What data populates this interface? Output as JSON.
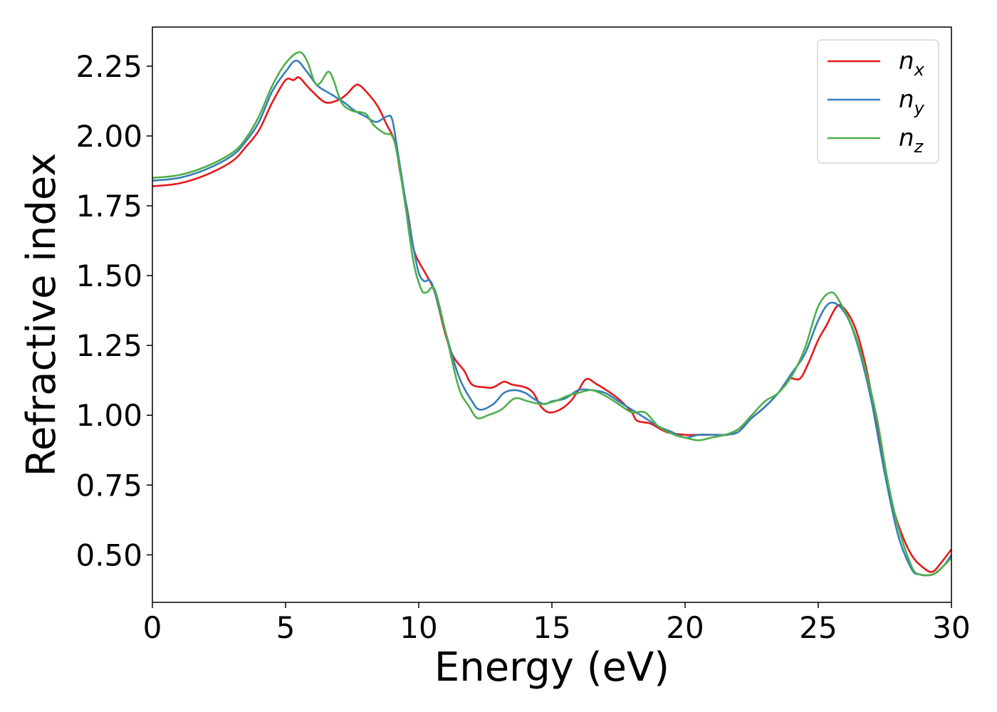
{
  "chart_data": {
    "type": "line",
    "title": "",
    "xlabel": "Energy (eV)",
    "ylabel": "Refractive index",
    "xlim": [
      0,
      30
    ],
    "ylim": [
      0.33,
      2.39
    ],
    "xticks": [
      0,
      5,
      10,
      15,
      20,
      25,
      30
    ],
    "xtick_labels": [
      "0",
      "5",
      "10",
      "15",
      "20",
      "25",
      "30"
    ],
    "yticks": [
      0.5,
      0.75,
      1.0,
      1.25,
      1.5,
      1.75,
      2.0,
      2.25
    ],
    "ytick_labels": [
      "0.50",
      "0.75",
      "1.00",
      "1.25",
      "1.50",
      "1.75",
      "2.00",
      "2.25"
    ],
    "grid": false,
    "legend_position": "top-right",
    "series": [
      {
        "name": "n_x",
        "legend_base": "n",
        "legend_sub": "x",
        "color": "#e41a1c",
        "points": [
          [
            0,
            1.82
          ],
          [
            1,
            1.83
          ],
          [
            2,
            1.86
          ],
          [
            3,
            1.91
          ],
          [
            3.5,
            1.96
          ],
          [
            4,
            2.02
          ],
          [
            4.5,
            2.12
          ],
          [
            5,
            2.2
          ],
          [
            5.3,
            2.2
          ],
          [
            5.5,
            2.21
          ],
          [
            5.8,
            2.18
          ],
          [
            6,
            2.16
          ],
          [
            6.5,
            2.12
          ],
          [
            7,
            2.13
          ],
          [
            7.3,
            2.15
          ],
          [
            7.6,
            2.18
          ],
          [
            7.8,
            2.18
          ],
          [
            8.2,
            2.14
          ],
          [
            8.5,
            2.1
          ],
          [
            8.8,
            2.04
          ],
          [
            9.1,
            1.98
          ],
          [
            9.3,
            1.87
          ],
          [
            9.6,
            1.72
          ],
          [
            9.8,
            1.6
          ],
          [
            10,
            1.55
          ],
          [
            10.3,
            1.5
          ],
          [
            10.6,
            1.44
          ],
          [
            11,
            1.29
          ],
          [
            11.3,
            1.21
          ],
          [
            11.7,
            1.16
          ],
          [
            12,
            1.11
          ],
          [
            12.5,
            1.1
          ],
          [
            12.8,
            1.1
          ],
          [
            13.2,
            1.12
          ],
          [
            13.5,
            1.11
          ],
          [
            14,
            1.1
          ],
          [
            14.3,
            1.08
          ],
          [
            14.6,
            1.03
          ],
          [
            14.9,
            1.01
          ],
          [
            15.3,
            1.02
          ],
          [
            15.7,
            1.05
          ],
          [
            16,
            1.09
          ],
          [
            16.3,
            1.13
          ],
          [
            16.7,
            1.11
          ],
          [
            17.2,
            1.08
          ],
          [
            17.6,
            1.05
          ],
          [
            18,
            1.01
          ],
          [
            18.2,
            0.98
          ],
          [
            18.7,
            0.97
          ],
          [
            19.3,
            0.94
          ],
          [
            20,
            0.93
          ],
          [
            20.5,
            0.93
          ],
          [
            21.2,
            0.93
          ],
          [
            21.6,
            0.93
          ],
          [
            22,
            0.95
          ],
          [
            22.5,
            0.99
          ],
          [
            23,
            1.03
          ],
          [
            23.5,
            1.08
          ],
          [
            23.9,
            1.13
          ],
          [
            24.3,
            1.13
          ],
          [
            24.6,
            1.18
          ],
          [
            25,
            1.27
          ],
          [
            25.3,
            1.32
          ],
          [
            25.7,
            1.39
          ],
          [
            26,
            1.38
          ],
          [
            26.4,
            1.31
          ],
          [
            26.8,
            1.17
          ],
          [
            27.2,
            0.97
          ],
          [
            27.6,
            0.75
          ],
          [
            28,
            0.61
          ],
          [
            28.5,
            0.5
          ],
          [
            29,
            0.45
          ],
          [
            29.3,
            0.44
          ],
          [
            29.6,
            0.47
          ],
          [
            30,
            0.52
          ]
        ]
      },
      {
        "name": "n_y",
        "legend_base": "n",
        "legend_sub": "y",
        "color": "#377eb8",
        "points": [
          [
            0,
            1.84
          ],
          [
            1,
            1.85
          ],
          [
            2,
            1.88
          ],
          [
            3,
            1.93
          ],
          [
            3.5,
            1.98
          ],
          [
            4,
            2.05
          ],
          [
            4.5,
            2.16
          ],
          [
            5,
            2.23
          ],
          [
            5.4,
            2.27
          ],
          [
            5.8,
            2.23
          ],
          [
            6.2,
            2.18
          ],
          [
            6.7,
            2.15
          ],
          [
            7.2,
            2.12
          ],
          [
            7.6,
            2.09
          ],
          [
            8,
            2.07
          ],
          [
            8.4,
            2.05
          ],
          [
            8.8,
            2.07
          ],
          [
            9,
            2.06
          ],
          [
            9.2,
            1.95
          ],
          [
            9.5,
            1.77
          ],
          [
            9.8,
            1.6
          ],
          [
            10,
            1.51
          ],
          [
            10.2,
            1.48
          ],
          [
            10.5,
            1.47
          ],
          [
            11,
            1.3
          ],
          [
            11.5,
            1.14
          ],
          [
            12,
            1.05
          ],
          [
            12.3,
            1.02
          ],
          [
            12.8,
            1.04
          ],
          [
            13.2,
            1.08
          ],
          [
            13.6,
            1.09
          ],
          [
            14,
            1.08
          ],
          [
            14.3,
            1.06
          ],
          [
            14.7,
            1.04
          ],
          [
            15,
            1.05
          ],
          [
            15.5,
            1.06
          ],
          [
            16,
            1.09
          ],
          [
            16.5,
            1.09
          ],
          [
            17,
            1.08
          ],
          [
            17.5,
            1.05
          ],
          [
            18,
            1.02
          ],
          [
            18.5,
            0.99
          ],
          [
            19,
            0.96
          ],
          [
            19.5,
            0.94
          ],
          [
            20,
            0.92
          ],
          [
            20.5,
            0.93
          ],
          [
            21,
            0.93
          ],
          [
            21.5,
            0.93
          ],
          [
            22,
            0.94
          ],
          [
            22.5,
            0.99
          ],
          [
            23,
            1.03
          ],
          [
            23.5,
            1.08
          ],
          [
            24,
            1.15
          ],
          [
            24.5,
            1.22
          ],
          [
            25,
            1.34
          ],
          [
            25.4,
            1.4
          ],
          [
            25.8,
            1.39
          ],
          [
            26.2,
            1.33
          ],
          [
            26.6,
            1.21
          ],
          [
            27,
            1.05
          ],
          [
            27.5,
            0.79
          ],
          [
            28,
            0.57
          ],
          [
            28.5,
            0.45
          ],
          [
            28.8,
            0.43
          ],
          [
            29.3,
            0.43
          ],
          [
            29.7,
            0.46
          ],
          [
            30,
            0.5
          ]
        ]
      },
      {
        "name": "n_z",
        "legend_base": "n",
        "legend_sub": "z",
        "color": "#4daf4a",
        "points": [
          [
            0,
            1.85
          ],
          [
            1,
            1.86
          ],
          [
            2,
            1.89
          ],
          [
            3,
            1.94
          ],
          [
            3.5,
            1.99
          ],
          [
            4,
            2.07
          ],
          [
            4.5,
            2.18
          ],
          [
            5,
            2.26
          ],
          [
            5.5,
            2.3
          ],
          [
            5.8,
            2.27
          ],
          [
            6.1,
            2.19
          ],
          [
            6.3,
            2.19
          ],
          [
            6.6,
            2.23
          ],
          [
            6.8,
            2.2
          ],
          [
            7.1,
            2.12
          ],
          [
            7.5,
            2.09
          ],
          [
            8,
            2.08
          ],
          [
            8.3,
            2.04
          ],
          [
            8.7,
            2.01
          ],
          [
            9,
            2.0
          ],
          [
            9.2,
            1.93
          ],
          [
            9.5,
            1.75
          ],
          [
            9.8,
            1.55
          ],
          [
            10.1,
            1.45
          ],
          [
            10.3,
            1.44
          ],
          [
            10.6,
            1.45
          ],
          [
            11,
            1.3
          ],
          [
            11.5,
            1.1
          ],
          [
            11.9,
            1.03
          ],
          [
            12.2,
            0.99
          ],
          [
            12.6,
            1.0
          ],
          [
            13.1,
            1.02
          ],
          [
            13.6,
            1.06
          ],
          [
            14.1,
            1.05
          ],
          [
            14.6,
            1.04
          ],
          [
            15.1,
            1.05
          ],
          [
            15.6,
            1.07
          ],
          [
            16,
            1.08
          ],
          [
            16.5,
            1.09
          ],
          [
            17,
            1.07
          ],
          [
            17.5,
            1.04
          ],
          [
            18,
            1.01
          ],
          [
            18.5,
            1.01
          ],
          [
            19,
            0.96
          ],
          [
            19.6,
            0.93
          ],
          [
            20,
            0.92
          ],
          [
            20.5,
            0.91
          ],
          [
            21,
            0.92
          ],
          [
            21.5,
            0.93
          ],
          [
            22,
            0.95
          ],
          [
            22.5,
            1.0
          ],
          [
            23,
            1.05
          ],
          [
            23.5,
            1.08
          ],
          [
            24,
            1.14
          ],
          [
            24.5,
            1.24
          ],
          [
            25,
            1.39
          ],
          [
            25.5,
            1.44
          ],
          [
            25.9,
            1.39
          ],
          [
            26.3,
            1.31
          ],
          [
            26.7,
            1.19
          ],
          [
            27.2,
            0.99
          ],
          [
            27.6,
            0.77
          ],
          [
            28,
            0.6
          ],
          [
            28.5,
            0.46
          ],
          [
            28.8,
            0.43
          ],
          [
            29.3,
            0.43
          ],
          [
            29.7,
            0.46
          ],
          [
            30,
            0.49
          ]
        ]
      }
    ]
  }
}
